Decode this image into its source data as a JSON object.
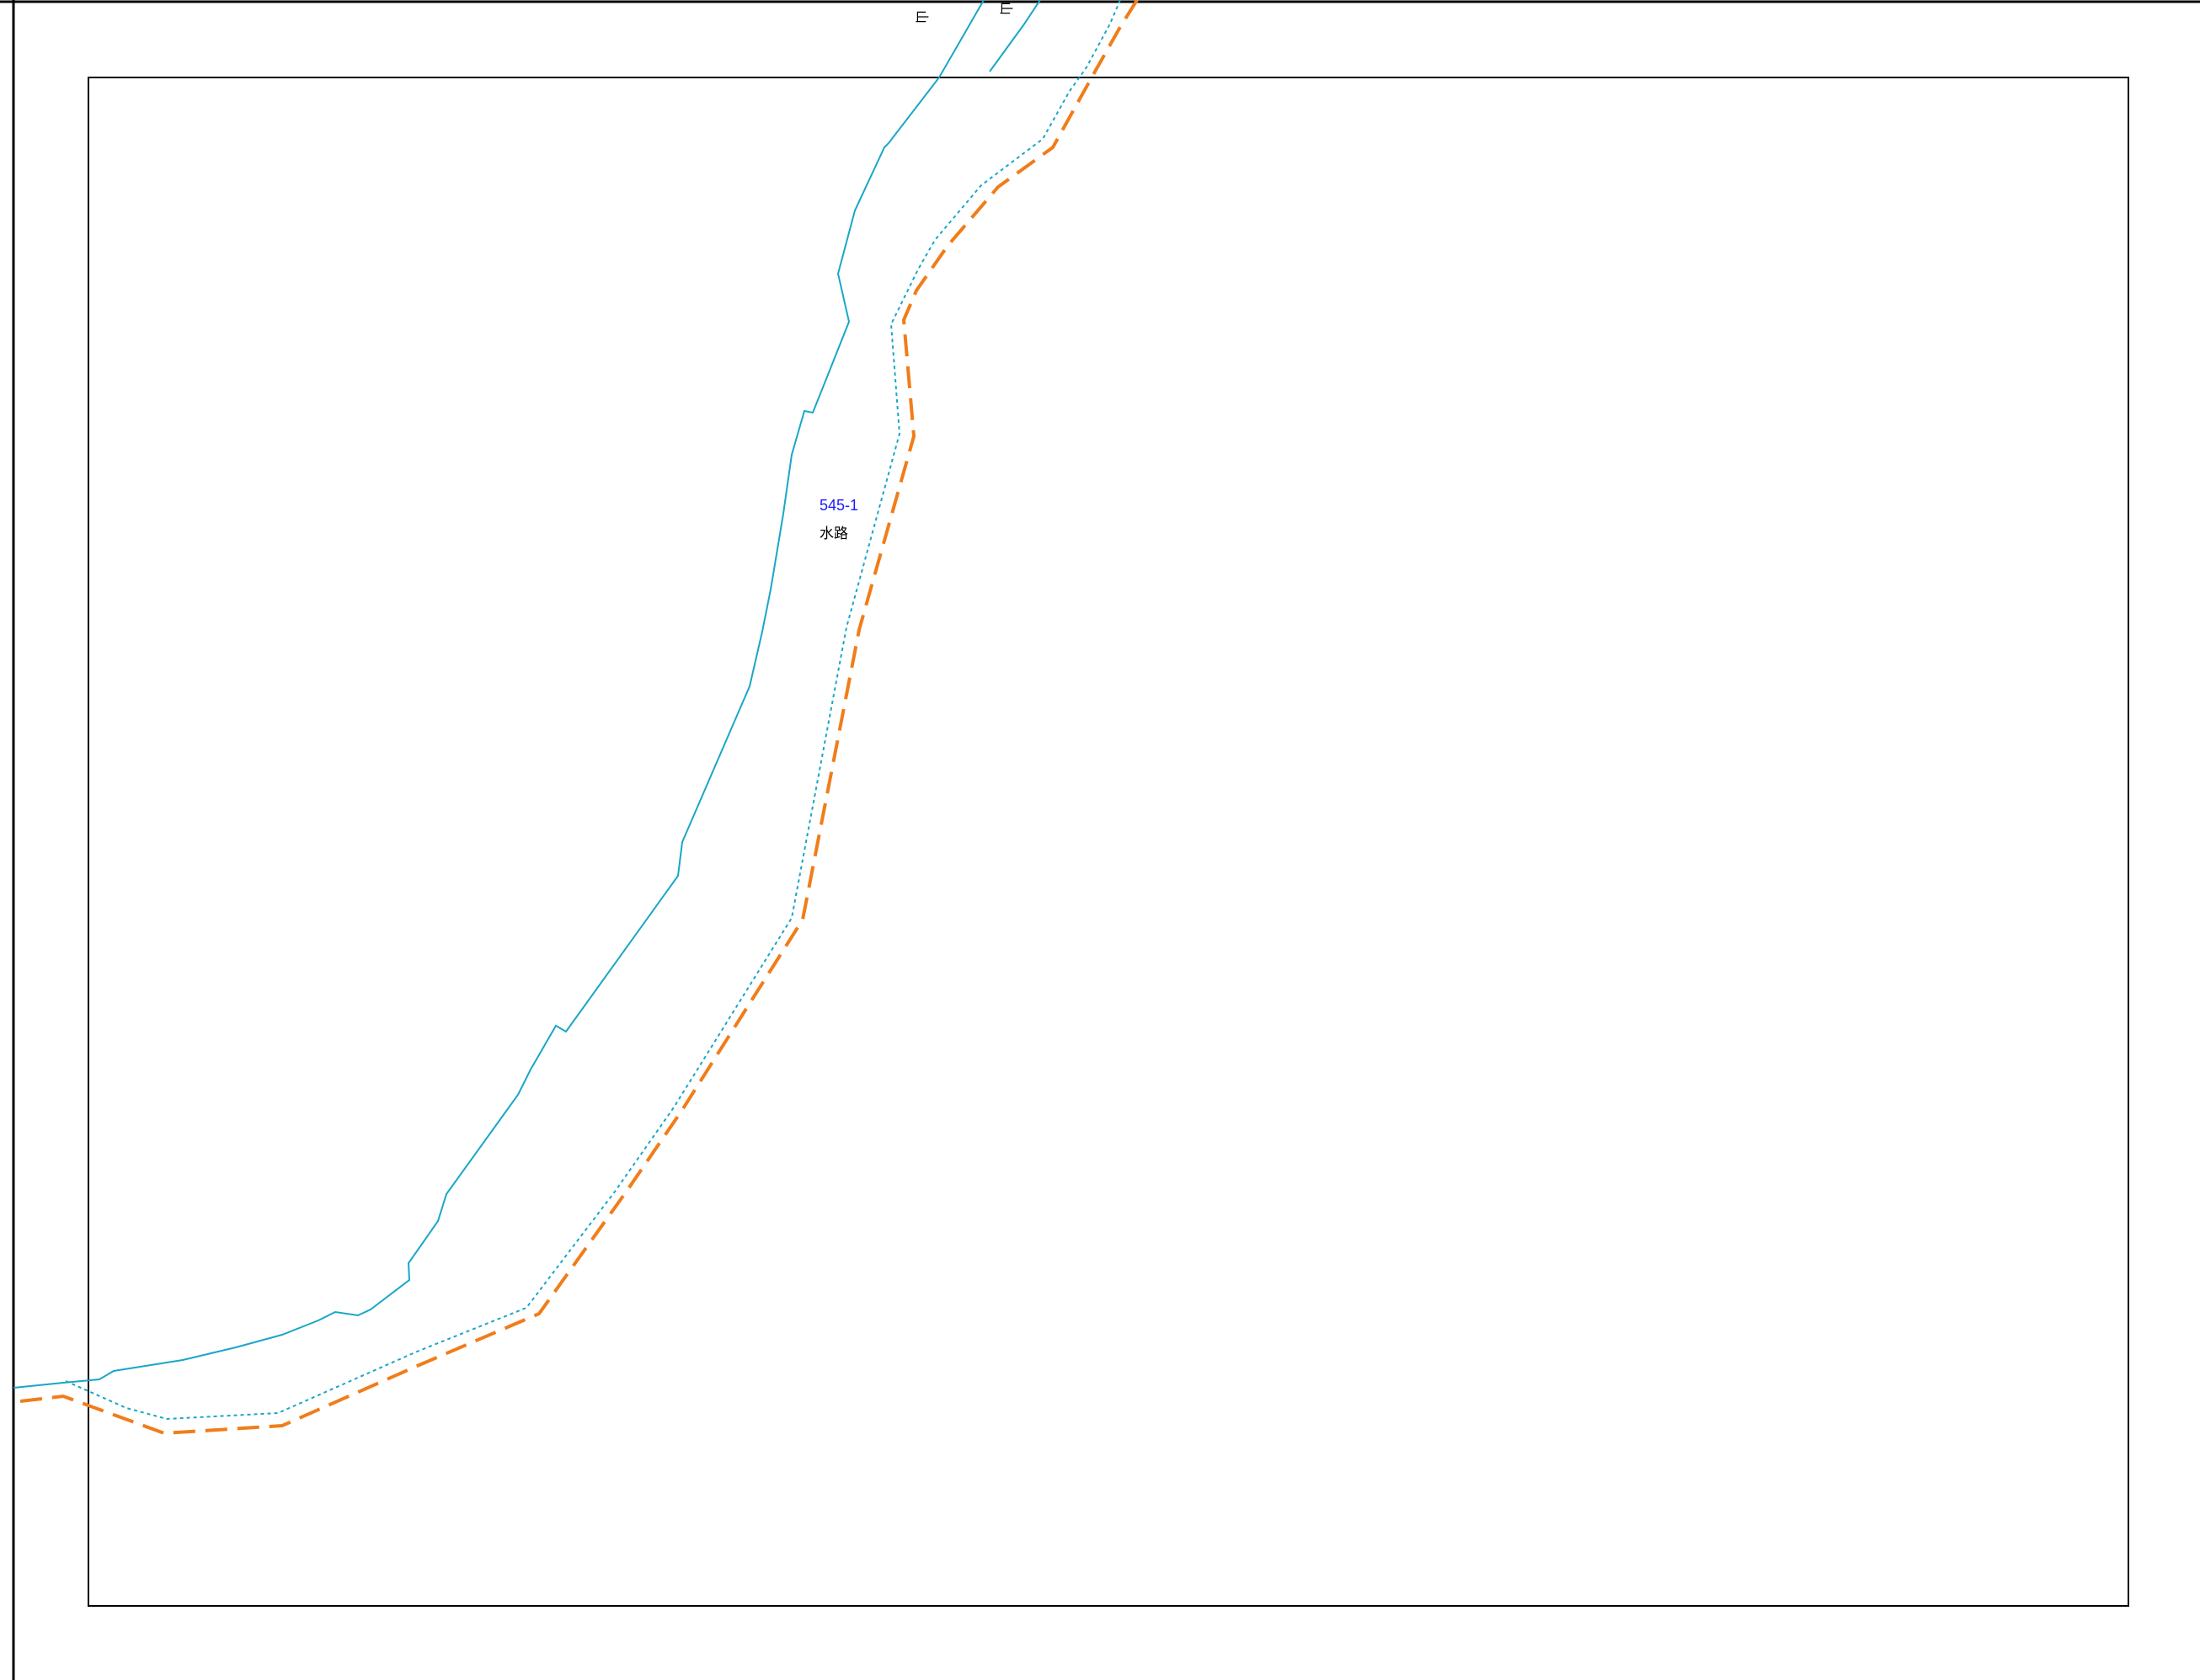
{
  "map": {
    "parcel": {
      "number": "545-1",
      "land_use": "水路"
    },
    "edge_labels": [
      {
        "text": "山"
      },
      {
        "text": "山"
      }
    ]
  },
  "colors": {
    "parcel_number": "#1a1aff",
    "land_use_text": "#000000",
    "waterway_line": "#1aa6c7",
    "boundary_dashed": "#f07d1a",
    "frame": "#000000",
    "background": "#ffffff"
  }
}
